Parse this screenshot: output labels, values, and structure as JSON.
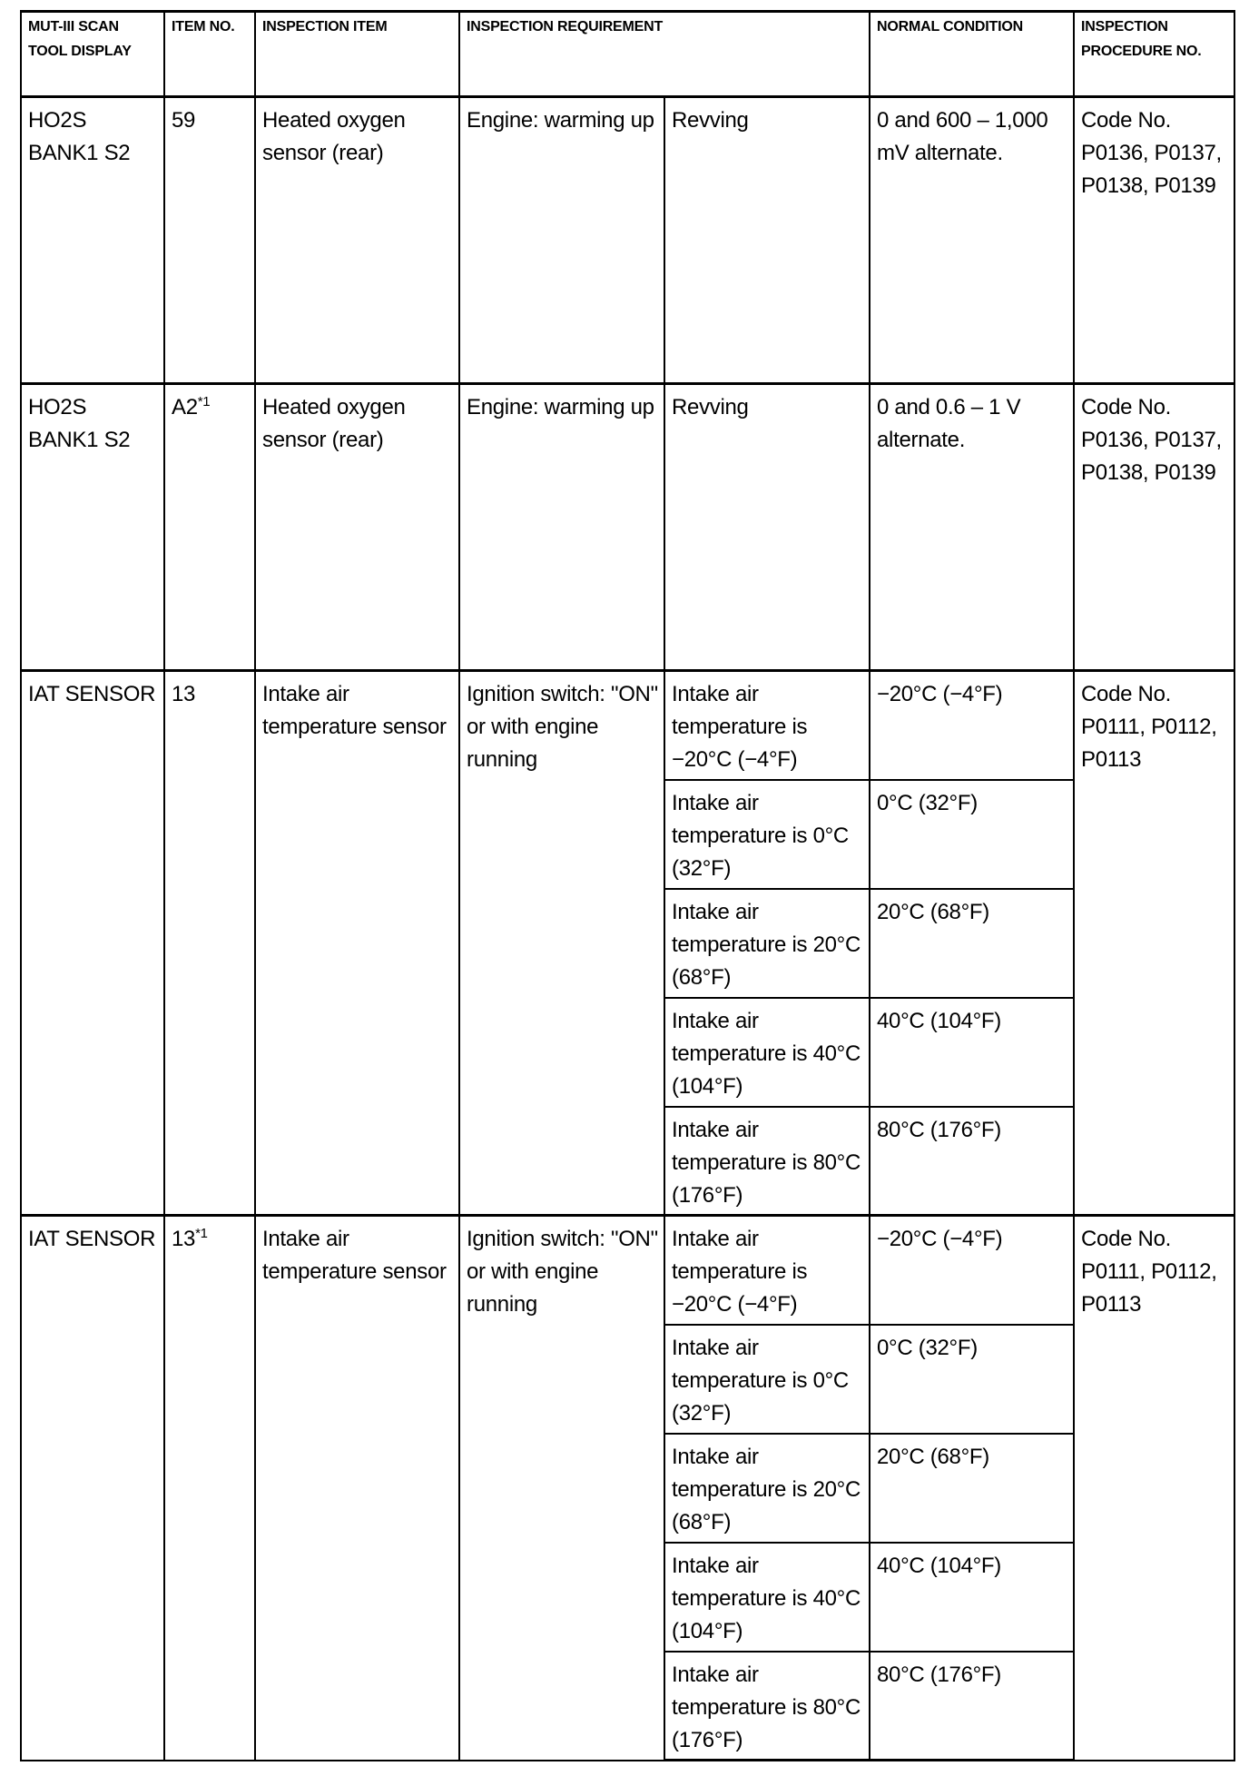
{
  "headers": {
    "display": "MUT-III SCAN TOOL DISPLAY",
    "item_no": "ITEM NO.",
    "item": "INSPECTION ITEM",
    "requirement": "INSPECTION REQUIREMENT",
    "normal": "NORMAL CONDITION",
    "procedure": "INSPECTION PROCEDURE NO."
  },
  "rows": [
    {
      "display": "HO2S BANK1 S2",
      "item_no": "59",
      "note": "",
      "item": "Heated oxygen sensor (rear)",
      "requirement": "Engine: warming up",
      "condition": "Revving",
      "normal": "0 and 600 – 1,000 mV alternate.",
      "procedure": "Code No. P0136, P0137, P0138, P0139"
    },
    {
      "display": "HO2S BANK1 S2",
      "item_no": "A2",
      "note": "*1",
      "item": "Heated oxygen sensor (rear)",
      "requirement": "Engine: warming up",
      "condition": "Revving",
      "normal": "0 and 0.6 – 1 V alternate.",
      "procedure": "Code No. P0136, P0137, P0138, P0139"
    },
    {
      "display": "IAT SENSOR",
      "item_no": "13",
      "note": "",
      "item": "Intake air temperature sensor",
      "requirement": "Ignition switch: \"ON\" or with engine running",
      "procedure": "Code No. P0111, P0112, P0113",
      "subs": [
        {
          "condition": "Intake air temperature is −20°C (−4°F)",
          "normal": "−20°C (−4°F)"
        },
        {
          "condition": "Intake air temperature is 0°C (32°F)",
          "normal": "0°C (32°F)"
        },
        {
          "condition": "Intake air temperature is 20°C (68°F)",
          "normal": "20°C (68°F)"
        },
        {
          "condition": "Intake air temperature is 40°C (104°F)",
          "normal": "40°C (104°F)"
        },
        {
          "condition": "Intake air temperature is 80°C (176°F)",
          "normal": "80°C (176°F)"
        }
      ]
    },
    {
      "display": "IAT SENSOR",
      "item_no": "13",
      "note": "*1",
      "item": "Intake air temperature sensor",
      "requirement": "Ignition switch: \"ON\" or with engine running",
      "procedure": "Code No. P0111, P0112, P0113",
      "subs": [
        {
          "condition": "Intake air temperature is −20°C (−4°F)",
          "normal": "−20°C (−4°F)"
        },
        {
          "condition": "Intake air temperature is 0°C (32°F)",
          "normal": "0°C (32°F)"
        },
        {
          "condition": "Intake air temperature is 20°C (68°F)",
          "normal": "20°C (68°F)"
        },
        {
          "condition": "Intake air temperature is 40°C (104°F)",
          "normal": "40°C (104°F)"
        },
        {
          "condition": "Intake air temperature is 80°C (176°F)",
          "normal": "80°C (176°F)"
        }
      ]
    }
  ]
}
